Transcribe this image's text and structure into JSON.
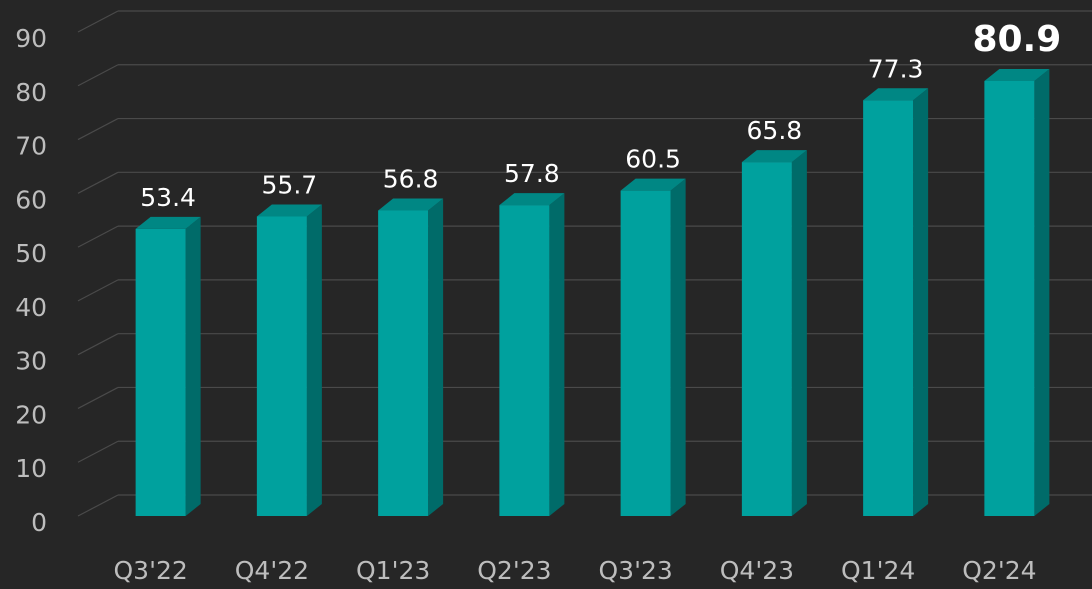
{
  "chart_data": {
    "type": "bar",
    "categories": [
      "Q3'22",
      "Q4'22",
      "Q1'23",
      "Q2'23",
      "Q3'23",
      "Q4'23",
      "Q1'24",
      "Q2'24"
    ],
    "values": [
      53.4,
      55.7,
      56.8,
      57.8,
      60.5,
      65.8,
      77.3,
      80.9
    ],
    "color": "#00a19e",
    "ylim": [
      0,
      90
    ],
    "yticks": [
      0,
      10,
      20,
      30,
      40,
      50,
      60,
      70,
      80,
      90
    ],
    "grid": true
  }
}
